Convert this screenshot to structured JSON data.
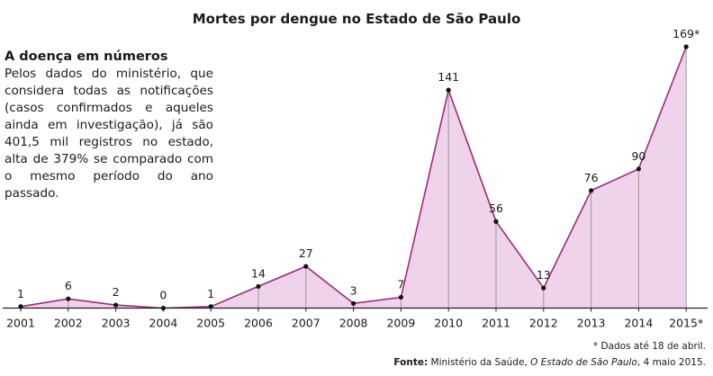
{
  "chart_data": {
    "type": "area",
    "title": "Mortes por dengue no Estado de São Paulo",
    "categories": [
      "2001",
      "2002",
      "2003",
      "2004",
      "2005",
      "2006",
      "2007",
      "2008",
      "2009",
      "2010",
      "2011",
      "2012",
      "2013",
      "2014",
      "2015*"
    ],
    "values": [
      1,
      6,
      2,
      0,
      1,
      14,
      27,
      3,
      7,
      141,
      56,
      13,
      76,
      90,
      169
    ],
    "value_labels": [
      "1",
      "6",
      "2",
      "0",
      "1",
      "14",
      "27",
      "3",
      "7",
      "141",
      "56",
      "13",
      "76",
      "90",
      "169*"
    ],
    "ylim": [
      0,
      169
    ],
    "colors": {
      "line": "#a0287e",
      "fill": "#efd3ea",
      "drop": "#9a9a9a",
      "axis": "#222222"
    }
  },
  "sidebar": {
    "heading": "A doença em números",
    "text": "Pelos dados do ministério, que considera todas as notificações (casos confirmados e aqueles ainda em investigação), já são 401,5 mil registros no estado, alta de 379% se comparado com o mesmo período do ano passado."
  },
  "footnote": "* Dados até 18 de abril.",
  "source": {
    "label": "Fonte:",
    "text_before": "Ministério da Saúde,",
    "italic": "O Estado de São Paulo",
    "text_after": ", 4 maio 2015."
  }
}
